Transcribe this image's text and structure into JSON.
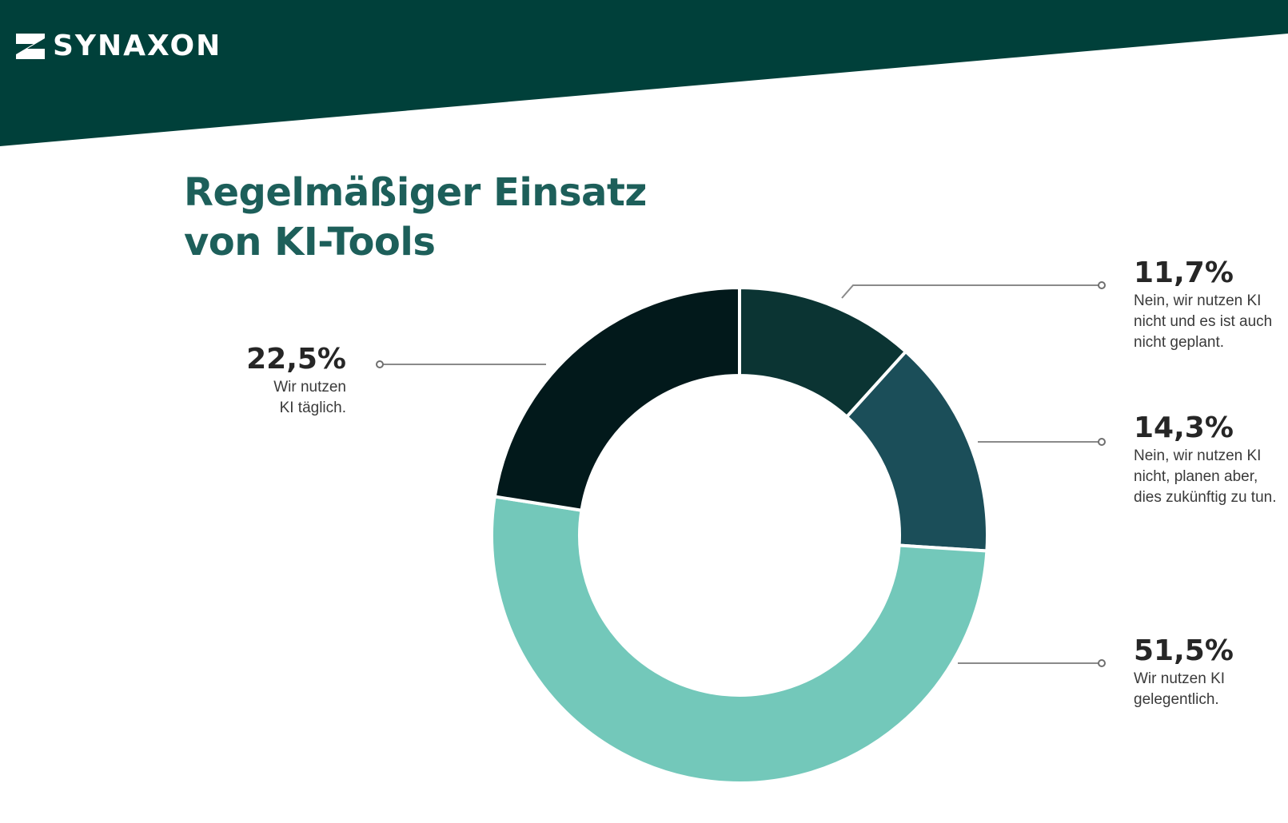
{
  "brand": {
    "name": "SYNAXON",
    "icon": "synaxon-logo-icon",
    "banner_color": "#00403a"
  },
  "title": {
    "line1": "Regelmäßiger Einsatz",
    "line2": "von KI-Tools",
    "color": "#1d5f5a"
  },
  "chart_data": {
    "type": "pie",
    "title": "Regelmäßiger Einsatz von KI-Tools",
    "unit": "%",
    "slices": [
      {
        "label": "11,7%",
        "value": 11.7,
        "description": "Nein, wir nutzen KI\nnicht und es ist auch\nnicht geplant.",
        "color": "#0b3433"
      },
      {
        "label": "14,3%",
        "value": 14.3,
        "description": "Nein, wir nutzen KI\nnicht, planen aber,\ndies zukünftig zu tun.",
        "color": "#1b4e59"
      },
      {
        "label": "51,5%",
        "value": 51.5,
        "description": "Wir nutzen KI\ngelegentlich.",
        "color": "#73c8ba"
      },
      {
        "label": "22,5%",
        "value": 22.5,
        "description": "Wir nutzen\nKI täglich.",
        "color": "#02191b"
      }
    ]
  }
}
